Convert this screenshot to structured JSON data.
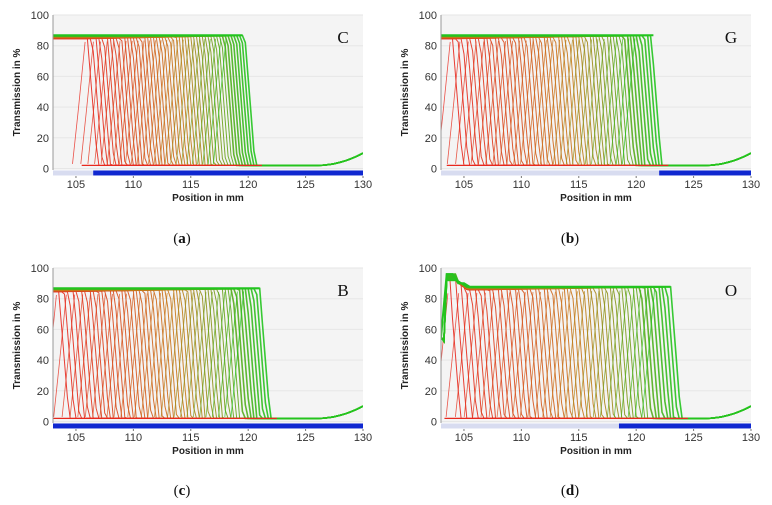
{
  "figure": {
    "colors": {
      "early": "#e8281e",
      "late": "#22c41e",
      "mid": "#c87a1a",
      "bar": "#1028d0",
      "bar_light": "#d8dcf0",
      "plot_bg": "#f4f4f4",
      "grid": "#e6e6e6"
    }
  },
  "chart_data": [
    {
      "type": "line",
      "panel_label": "C",
      "caption_letter": "a",
      "xlabel": "Position in mm",
      "ylabel": "Transmission in %",
      "xlim": [
        103,
        130
      ],
      "ylim": [
        -1,
        100
      ],
      "xticks": [
        105,
        110,
        115,
        120,
        125,
        130
      ],
      "yticks": [
        0,
        20,
        40,
        60,
        80,
        100
      ],
      "plateau": 86,
      "floor_level": 2,
      "edge_start": 106.5,
      "edge_end": 120.2,
      "overshoot": null,
      "bar_split": 106.5,
      "tail_end": 8,
      "n_curves": 50
    },
    {
      "type": "line",
      "panel_label": "G",
      "caption_letter": "b",
      "xlabel": "Position in mm",
      "ylabel": "Transmission in %",
      "xlim": [
        103,
        130
      ],
      "ylim": [
        -1,
        100
      ],
      "xticks": [
        105,
        110,
        115,
        120,
        125,
        130
      ],
      "yticks": [
        0,
        20,
        40,
        60,
        80,
        100
      ],
      "plateau": 86,
      "floor_level": 2,
      "edge_start": 104.5,
      "edge_end": 121.8,
      "overshoot": null,
      "bar_split": 122,
      "tail_end": 8,
      "n_curves": 55
    },
    {
      "type": "line",
      "panel_label": "B",
      "caption_letter": "c",
      "xlabel": "Position in mm",
      "ylabel": "Transmission in %",
      "xlim": [
        103,
        130
      ],
      "ylim": [
        -1,
        100
      ],
      "xticks": [
        105,
        110,
        115,
        120,
        125,
        130
      ],
      "yticks": [
        0,
        20,
        40,
        60,
        80,
        100
      ],
      "plateau": 86,
      "floor_level": 2,
      "edge_start": 104.0,
      "edge_end": 121.5,
      "overshoot": null,
      "bar_split": 103,
      "tail_end": 8,
      "n_curves": 55
    },
    {
      "type": "line",
      "panel_label": "O",
      "caption_letter": "d",
      "xlabel": "Position in mm",
      "ylabel": "Transmission in %",
      "xlim": [
        103,
        130
      ],
      "ylim": [
        -1,
        100
      ],
      "xticks": [
        105,
        110,
        115,
        120,
        125,
        130
      ],
      "yticks": [
        0,
        20,
        40,
        60,
        80,
        100
      ],
      "plateau": 87,
      "floor_level": 2,
      "edge_start": 104.3,
      "edge_end": 123.5,
      "overshoot": {
        "x": 104.1,
        "y": 96,
        "start_level": 55
      },
      "bar_split": 118.5,
      "tail_end": 8,
      "n_curves": 55
    }
  ]
}
